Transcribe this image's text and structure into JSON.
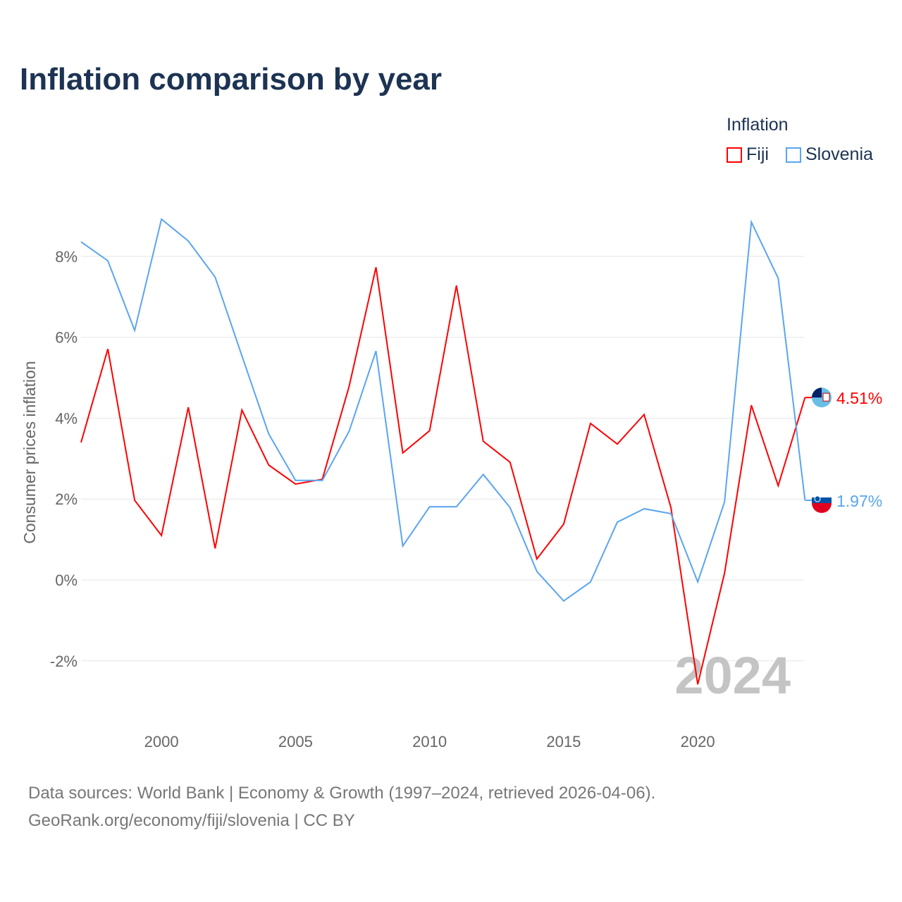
{
  "chart_data": {
    "type": "line",
    "title": "Inflation comparison by year",
    "ylabel": "Consumer prices inflation",
    "xlabel": "",
    "legend_title": "Inflation",
    "legend_position": "top-right",
    "ylim": [
      -3.2,
      9.5
    ],
    "xlim": [
      1997,
      2024
    ],
    "grid": true,
    "yticks": [
      -2,
      0,
      2,
      4,
      6,
      8
    ],
    "ytick_labels": [
      "-2%",
      "0%",
      "2%",
      "4%",
      "6%",
      "8%"
    ],
    "xticks": [
      2000,
      2005,
      2010,
      2015,
      2020
    ],
    "xtick_labels": [
      "2000",
      "2005",
      "2010",
      "2015",
      "2020"
    ],
    "year_watermark": "2024",
    "x": [
      1997,
      1998,
      1999,
      2000,
      2001,
      2002,
      2003,
      2004,
      2005,
      2006,
      2007,
      2008,
      2009,
      2010,
      2011,
      2012,
      2013,
      2014,
      2015,
      2016,
      2017,
      2018,
      2019,
      2020,
      2021,
      2022,
      2023,
      2024
    ],
    "series": [
      {
        "name": "Fiji",
        "color": "#ff0000",
        "end_label": "4.51%",
        "values": [
          3.4,
          5.71,
          1.97,
          1.1,
          4.27,
          0.78,
          4.2,
          2.84,
          2.37,
          2.49,
          4.79,
          7.73,
          3.14,
          3.69,
          7.28,
          3.43,
          2.91,
          0.52,
          1.38,
          3.87,
          3.36,
          4.09,
          1.79,
          -2.58,
          0.17,
          4.32,
          2.33,
          4.51
        ]
      },
      {
        "name": "Slovenia",
        "color": "#5aa5f0",
        "end_label": "1.97%",
        "values": [
          8.36,
          7.89,
          6.17,
          8.92,
          8.38,
          7.49,
          5.54,
          3.61,
          2.46,
          2.46,
          3.68,
          5.66,
          0.84,
          1.81,
          1.81,
          2.61,
          1.79,
          0.21,
          -0.52,
          -0.05,
          1.43,
          1.76,
          1.64,
          -0.05,
          1.93,
          8.85,
          7.46,
          1.97
        ]
      }
    ]
  },
  "footer": {
    "line1": "Data sources: World Bank | Economy & Growth (1997–2024, retrieved 2026-04-06).",
    "line2": "GeoRank.org/economy/fiji/slovenia | CC BY"
  }
}
